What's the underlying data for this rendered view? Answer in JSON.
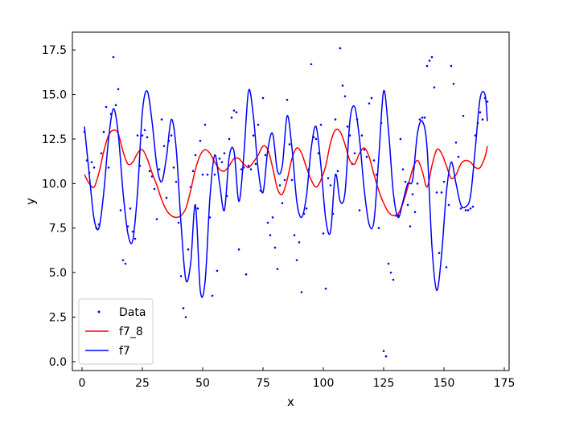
{
  "chart_data": {
    "type": "line",
    "xlabel": "x",
    "ylabel": "y",
    "xlim": [
      -4,
      177
    ],
    "ylim": [
      -0.5,
      18.5
    ],
    "xticks": [
      0,
      25,
      50,
      75,
      100,
      125,
      150,
      175
    ],
    "yticks": [
      0.0,
      2.5,
      5.0,
      7.5,
      10.0,
      12.5,
      15.0,
      17.5
    ],
    "xtick_labels": [
      "0",
      "25",
      "50",
      "75",
      "100",
      "125",
      "150",
      "175"
    ],
    "ytick_labels": [
      "0.0",
      "2.5",
      "5.0",
      "7.5",
      "10.0",
      "12.5",
      "15.0",
      "17.5"
    ],
    "grid": false,
    "legend_position": "lower-left",
    "legend": [
      {
        "label": "Data",
        "marker": "dot",
        "color": "#0000ff"
      },
      {
        "label": "f7_8",
        "marker": "line",
        "color": "#ff0000"
      },
      {
        "label": "f7",
        "marker": "line",
        "color": "#0000ff"
      }
    ],
    "series": [
      {
        "name": "Data",
        "kind": "scatter",
        "color": "#0000ff",
        "x": [
          1,
          2,
          3,
          4,
          5,
          6,
          7,
          8,
          9,
          10,
          11,
          12,
          13,
          14,
          15,
          16,
          17,
          18,
          19,
          20,
          21,
          22,
          23,
          24,
          25,
          26,
          27,
          28,
          29,
          30,
          31,
          32,
          33,
          34,
          35,
          36,
          37,
          38,
          39,
          40,
          41,
          42,
          43,
          44,
          45,
          46,
          47,
          48,
          49,
          50,
          51,
          52,
          53,
          54,
          55,
          56,
          57,
          58,
          59,
          60,
          61,
          62,
          63,
          64,
          65,
          66,
          67,
          68,
          69,
          70,
          71,
          72,
          73,
          74,
          75,
          76,
          77,
          78,
          79,
          80,
          81,
          82,
          83,
          84,
          85,
          86,
          87,
          88,
          89,
          90,
          91,
          92,
          93,
          94,
          95,
          96,
          97,
          98,
          99,
          100,
          101,
          102,
          103,
          104,
          105,
          106,
          107,
          108,
          109,
          110,
          111,
          112,
          113,
          114,
          115,
          116,
          117,
          118,
          119,
          120,
          121,
          122,
          123,
          124,
          125,
          126,
          127,
          128,
          129,
          130,
          131,
          132,
          133,
          134,
          135,
          136,
          137,
          138,
          139,
          140,
          141,
          142,
          143,
          144,
          145,
          146,
          147,
          148,
          149,
          150,
          151,
          152,
          153,
          154,
          155,
          156,
          157,
          158,
          159,
          160,
          161,
          162,
          163,
          164,
          165,
          166,
          167,
          168
        ],
        "y": [
          12.9,
          11.3,
          10.6,
          11.2,
          10.9,
          7.5,
          7.7,
          11.7,
          12.9,
          14.3,
          10.9,
          13.9,
          17.1,
          14.4,
          15.3,
          8.5,
          5.7,
          5.5,
          7.6,
          8.6,
          7.3,
          6.9,
          12.7,
          11.0,
          12.7,
          13.0,
          12.6,
          10.7,
          10.4,
          9.7,
          8.0,
          10.8,
          13.6,
          12.1,
          9.2,
          12.4,
          12.7,
          10.9,
          10.1,
          7.8,
          4.8,
          3.0,
          2.5,
          6.3,
          9.8,
          10.7,
          11.6,
          8.6,
          12.4,
          10.5,
          13.3,
          10.5,
          8.1,
          3.7,
          10.5,
          5.1,
          11.4,
          11.2,
          11.7,
          9.3,
          12.5,
          13.7,
          14.1,
          14.0,
          6.3,
          10.8,
          10.9,
          4.9,
          11.0,
          10.8,
          12.7,
          11.1,
          13.3,
          9.6,
          14.8,
          11.6,
          7.8,
          7.1,
          8.1,
          6.4,
          5.2,
          9.9,
          8.9,
          10.2,
          14.7,
          12.2,
          10.2,
          7.1,
          5.7,
          6.7,
          3.9,
          8.3,
          8.6,
          10.8,
          16.7,
          12.6,
          12.5,
          11.7,
          13.3,
          7.2,
          4.1,
          10.3,
          9.9,
          8.3,
          13.6,
          10.7,
          17.6,
          15.5,
          14.9,
          13.2,
          12.7,
          11.1,
          11.7,
          13.6,
          8.5,
          12.7,
          11.9,
          11.5,
          14.5,
          14.8,
          11.3,
          10.5,
          7.5,
          13.4,
          0.6,
          0.3,
          5.5,
          5.0,
          4.6,
          8.2,
          8.2,
          12.5,
          10.8,
          10.1,
          8.8,
          7.6,
          9.4,
          8.4,
          10.0,
          13.6,
          13.7,
          13.7,
          16.6,
          16.9,
          17.1,
          15.4,
          9.5,
          6.1,
          9.5,
          10.1,
          5.3,
          8.8,
          16.6,
          15.6,
          12.3,
          11.5,
          8.6,
          13.8,
          8.5,
          8.5,
          8.6,
          8.7,
          12.7,
          13.4,
          14.0,
          13.6,
          14.8,
          14.6
        ]
      },
      {
        "name": "f7_8",
        "kind": "line",
        "color": "#ff0000",
        "x": [
          1,
          3,
          5,
          7,
          9,
          11,
          13,
          15,
          17,
          19,
          21,
          23,
          25,
          27,
          29,
          31,
          33,
          35,
          37,
          39,
          41,
          43,
          45,
          47,
          49,
          51,
          53,
          55,
          57,
          59,
          61,
          63,
          65,
          67,
          69,
          71,
          73,
          75,
          77,
          79,
          81,
          83,
          85,
          87,
          89,
          91,
          93,
          95,
          97,
          99,
          101,
          103,
          105,
          107,
          109,
          111,
          113,
          115,
          117,
          119,
          121,
          123,
          125,
          127,
          129,
          131,
          133,
          135,
          137,
          139,
          141,
          143,
          145,
          147,
          149,
          151,
          153,
          155,
          157,
          159,
          161,
          163,
          165,
          167,
          168
        ],
        "y": [
          10.5,
          10.0,
          9.8,
          10.6,
          11.8,
          12.7,
          13.0,
          12.8,
          11.8,
          11.1,
          11.2,
          11.7,
          11.9,
          11.4,
          10.6,
          9.9,
          9.1,
          8.5,
          8.2,
          8.1,
          8.2,
          8.6,
          9.6,
          10.8,
          11.6,
          11.9,
          11.7,
          11.2,
          10.8,
          10.7,
          11.0,
          11.4,
          11.4,
          11.1,
          10.9,
          11.2,
          11.6,
          12.1,
          11.9,
          10.9,
          9.7,
          9.4,
          10.2,
          11.4,
          12.0,
          11.7,
          10.9,
          10.2,
          9.8,
          10.2,
          11.0,
          12.3,
          13.0,
          12.9,
          12.2,
          11.3,
          11.1,
          11.7,
          12.0,
          11.5,
          10.5,
          9.6,
          8.9,
          8.4,
          8.2,
          8.3,
          8.9,
          9.8,
          10.8,
          11.3,
          10.7,
          9.8,
          11.0,
          11.9,
          11.7,
          11.0,
          10.3,
          10.5,
          11.1,
          11.3,
          11.2,
          10.9,
          10.9,
          11.5,
          12.1
        ]
      },
      {
        "name": "f7",
        "kind": "line",
        "color": "#0000ff",
        "x": [
          1,
          3,
          5,
          7,
          9,
          11,
          13,
          15,
          17,
          19,
          21,
          23,
          25,
          27,
          29,
          31,
          33,
          35,
          37,
          39,
          41,
          43,
          45,
          47,
          49,
          51,
          53,
          55,
          57,
          59,
          61,
          63,
          65,
          67,
          69,
          71,
          73,
          75,
          77,
          79,
          81,
          83,
          85,
          87,
          89,
          91,
          93,
          95,
          97,
          99,
          101,
          103,
          105,
          107,
          109,
          111,
          113,
          115,
          117,
          119,
          121,
          123,
          125,
          127,
          129,
          131,
          133,
          135,
          137,
          139,
          141,
          143,
          145,
          147,
          149,
          151,
          153,
          155,
          157,
          159,
          161,
          163,
          165,
          167,
          168
        ],
        "y": [
          13.2,
          10.5,
          8.0,
          7.5,
          9.5,
          12.5,
          14.2,
          12.8,
          9.5,
          7.2,
          6.8,
          9.5,
          14.0,
          15.2,
          13.5,
          11.0,
          10.1,
          11.5,
          13.6,
          12.0,
          7.8,
          4.6,
          5.5,
          8.8,
          4.0,
          4.5,
          9.2,
          11.6,
          10.0,
          8.5,
          11.5,
          11.8,
          9.0,
          11.5,
          15.2,
          13.8,
          10.8,
          9.5,
          11.9,
          12.8,
          10.7,
          11.0,
          13.8,
          12.0,
          9.0,
          8.1,
          9.3,
          12.0,
          13.2,
          11.0,
          8.0,
          7.3,
          10.5,
          9.0,
          9.5,
          13.5,
          14.3,
          12.5,
          9.6,
          7.7,
          7.9,
          11.5,
          15.2,
          13.0,
          9.5,
          8.1,
          9.0,
          10.0,
          10.2,
          12.8,
          13.5,
          12.0,
          6.5,
          4.0,
          6.0,
          9.5,
          11.2,
          10.0,
          8.8,
          8.7,
          9.3,
          12.0,
          14.8,
          15.0,
          13.5
        ]
      }
    ]
  }
}
